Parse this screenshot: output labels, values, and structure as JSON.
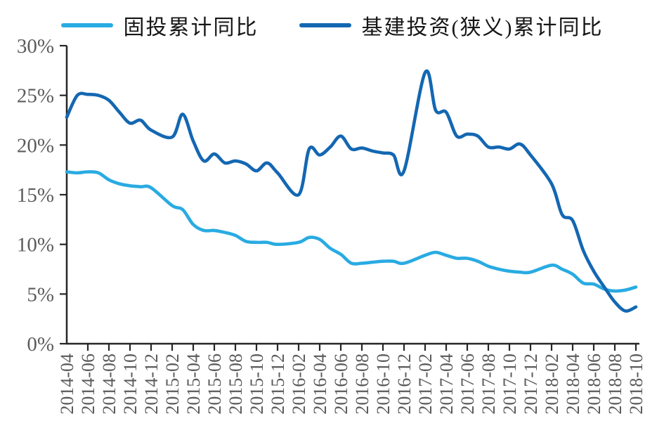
{
  "chart_data": {
    "type": "line",
    "title": "",
    "xlabel": "",
    "ylabel": "",
    "ylim": [
      0,
      30
    ],
    "y_tick_step": 5,
    "y_tick_labels": [
      "0%",
      "5%",
      "10%",
      "15%",
      "20%",
      "25%",
      "30%"
    ],
    "x_tick_labels": [
      "2014-04",
      "2014-06",
      "2014-08",
      "2014-10",
      "2014-12",
      "2015-02",
      "2015-04",
      "2015-06",
      "2015-08",
      "2015-10",
      "2015-12",
      "2016-02",
      "2016-04",
      "2016-06",
      "2016-08",
      "2016-10",
      "2016-12",
      "2017-02",
      "2017-04",
      "2017-06",
      "2017-08",
      "2017-10",
      "2017-12",
      "2018-02",
      "2018-04",
      "2018-06",
      "2018-08",
      "2018-10"
    ],
    "x_range": [
      "2014-04",
      "2018-10"
    ],
    "grid": false,
    "legend_position": "top",
    "axis_color": "#262626",
    "tick_label_color": "#5b5b5b",
    "series": [
      {
        "name": "固投累计同比",
        "color": "#29abe2",
        "points": [
          {
            "m": "2014-04",
            "v": 17.3
          },
          {
            "m": "2014-05",
            "v": 17.2
          },
          {
            "m": "2014-06",
            "v": 17.3
          },
          {
            "m": "2014-07",
            "v": 17.2
          },
          {
            "m": "2014-08",
            "v": 16.5
          },
          {
            "m": "2014-09",
            "v": 16.1
          },
          {
            "m": "2014-10",
            "v": 15.9
          },
          {
            "m": "2014-11",
            "v": 15.8
          },
          {
            "m": "2014-12",
            "v": 15.7
          },
          {
            "m": "2015-02",
            "v": 13.9
          },
          {
            "m": "2015-03",
            "v": 13.5
          },
          {
            "m": "2015-04",
            "v": 12.0
          },
          {
            "m": "2015-05",
            "v": 11.4
          },
          {
            "m": "2015-06",
            "v": 11.4
          },
          {
            "m": "2015-07",
            "v": 11.2
          },
          {
            "m": "2015-08",
            "v": 10.9
          },
          {
            "m": "2015-09",
            "v": 10.3
          },
          {
            "m": "2015-10",
            "v": 10.2
          },
          {
            "m": "2015-11",
            "v": 10.2
          },
          {
            "m": "2015-12",
            "v": 10.0
          },
          {
            "m": "2016-02",
            "v": 10.2
          },
          {
            "m": "2016-03",
            "v": 10.7
          },
          {
            "m": "2016-04",
            "v": 10.5
          },
          {
            "m": "2016-05",
            "v": 9.6
          },
          {
            "m": "2016-06",
            "v": 9.0
          },
          {
            "m": "2016-07",
            "v": 8.1
          },
          {
            "m": "2016-08",
            "v": 8.1
          },
          {
            "m": "2016-09",
            "v": 8.2
          },
          {
            "m": "2016-10",
            "v": 8.3
          },
          {
            "m": "2016-11",
            "v": 8.3
          },
          {
            "m": "2016-12",
            "v": 8.1
          },
          {
            "m": "2017-02",
            "v": 8.9
          },
          {
            "m": "2017-03",
            "v": 9.2
          },
          {
            "m": "2017-04",
            "v": 8.9
          },
          {
            "m": "2017-05",
            "v": 8.6
          },
          {
            "m": "2017-06",
            "v": 8.6
          },
          {
            "m": "2017-07",
            "v": 8.3
          },
          {
            "m": "2017-08",
            "v": 7.8
          },
          {
            "m": "2017-09",
            "v": 7.5
          },
          {
            "m": "2017-10",
            "v": 7.3
          },
          {
            "m": "2017-11",
            "v": 7.2
          },
          {
            "m": "2017-12",
            "v": 7.2
          },
          {
            "m": "2018-02",
            "v": 7.9
          },
          {
            "m": "2018-03",
            "v": 7.5
          },
          {
            "m": "2018-04",
            "v": 7.0
          },
          {
            "m": "2018-05",
            "v": 6.1
          },
          {
            "m": "2018-06",
            "v": 6.0
          },
          {
            "m": "2018-07",
            "v": 5.5
          },
          {
            "m": "2018-08",
            "v": 5.3
          },
          {
            "m": "2018-09",
            "v": 5.4
          },
          {
            "m": "2018-10",
            "v": 5.7
          }
        ]
      },
      {
        "name": "基建投资(狭义)累计同比",
        "color": "#1467b2",
        "points": [
          {
            "m": "2014-04",
            "v": 22.8
          },
          {
            "m": "2014-05",
            "v": 25.0
          },
          {
            "m": "2014-06",
            "v": 25.1
          },
          {
            "m": "2014-07",
            "v": 25.0
          },
          {
            "m": "2014-08",
            "v": 24.5
          },
          {
            "m": "2014-09",
            "v": 23.3
          },
          {
            "m": "2014-10",
            "v": 22.2
          },
          {
            "m": "2014-11",
            "v": 22.5
          },
          {
            "m": "2014-12",
            "v": 21.5
          },
          {
            "m": "2015-02",
            "v": 20.8
          },
          {
            "m": "2015-03",
            "v": 23.1
          },
          {
            "m": "2015-04",
            "v": 20.4
          },
          {
            "m": "2015-05",
            "v": 18.4
          },
          {
            "m": "2015-06",
            "v": 19.1
          },
          {
            "m": "2015-07",
            "v": 18.2
          },
          {
            "m": "2015-08",
            "v": 18.4
          },
          {
            "m": "2015-09",
            "v": 18.1
          },
          {
            "m": "2015-10",
            "v": 17.4
          },
          {
            "m": "2015-11",
            "v": 18.2
          },
          {
            "m": "2015-12",
            "v": 17.2
          },
          {
            "m": "2016-02",
            "v": 15.0
          },
          {
            "m": "2016-03",
            "v": 19.6
          },
          {
            "m": "2016-04",
            "v": 19.0
          },
          {
            "m": "2016-05",
            "v": 19.8
          },
          {
            "m": "2016-06",
            "v": 20.9
          },
          {
            "m": "2016-07",
            "v": 19.6
          },
          {
            "m": "2016-08",
            "v": 19.7
          },
          {
            "m": "2016-09",
            "v": 19.4
          },
          {
            "m": "2016-10",
            "v": 19.2
          },
          {
            "m": "2016-11",
            "v": 19.0
          },
          {
            "m": "2016-12",
            "v": 17.4
          },
          {
            "m": "2017-02",
            "v": 27.3
          },
          {
            "m": "2017-03",
            "v": 23.5
          },
          {
            "m": "2017-04",
            "v": 23.3
          },
          {
            "m": "2017-05",
            "v": 20.9
          },
          {
            "m": "2017-06",
            "v": 21.1
          },
          {
            "m": "2017-07",
            "v": 20.9
          },
          {
            "m": "2017-08",
            "v": 19.8
          },
          {
            "m": "2017-09",
            "v": 19.8
          },
          {
            "m": "2017-10",
            "v": 19.6
          },
          {
            "m": "2017-11",
            "v": 20.1
          },
          {
            "m": "2017-12",
            "v": 19.0
          },
          {
            "m": "2018-02",
            "v": 16.1
          },
          {
            "m": "2018-03",
            "v": 13.0
          },
          {
            "m": "2018-04",
            "v": 12.4
          },
          {
            "m": "2018-05",
            "v": 9.4
          },
          {
            "m": "2018-06",
            "v": 7.3
          },
          {
            "m": "2018-07",
            "v": 5.7
          },
          {
            "m": "2018-08",
            "v": 4.2
          },
          {
            "m": "2018-09",
            "v": 3.3
          },
          {
            "m": "2018-10",
            "v": 3.7
          }
        ]
      }
    ]
  }
}
